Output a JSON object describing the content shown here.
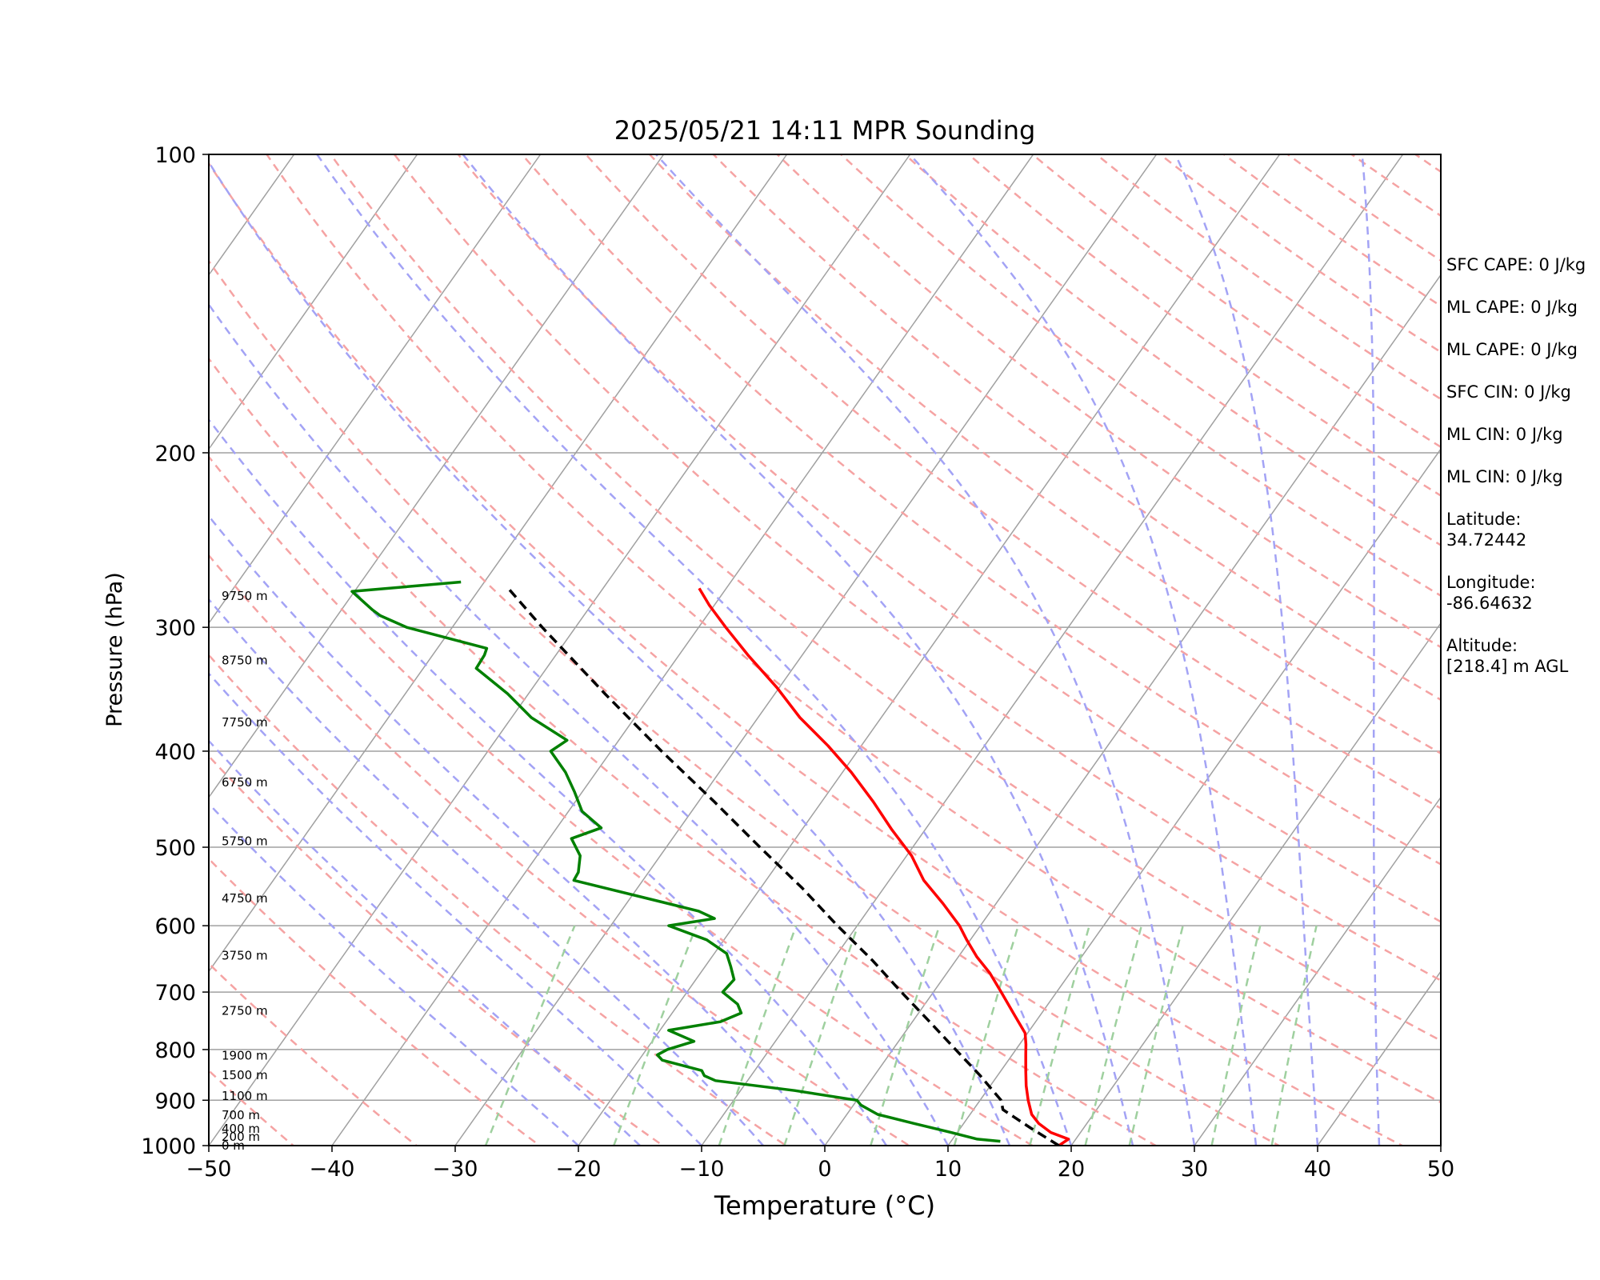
{
  "title": "2025/05/21 14:11 MPR Sounding",
  "side_info": [
    "SFC CAPE: 0 J/kg",
    "ML CAPE: 0 J/kg",
    "ML CAPE: 0 J/kg",
    "SFC CIN: 0 J/kg",
    "ML CIN: 0 J/kg",
    "ML CIN: 0 J/kg",
    "Latitude:\n34.72442",
    "Longitude:\n-86.64632",
    "Altitude:\n[218.4] m AGL"
  ],
  "chart_data": {
    "type": "line",
    "subtype": "skew-T log-P diagram",
    "title": "2025/05/21 14:11 MPR Sounding",
    "xlabel": "Temperature (°C)",
    "ylabel": "Pressure (hPa)",
    "xlim": [
      -50,
      50
    ],
    "ylim": [
      1000,
      100
    ],
    "yscale": "log",
    "x_ticks": [
      "−50",
      "−40",
      "−30",
      "−20",
      "−10",
      "0",
      "10",
      "20",
      "30",
      "40",
      "50"
    ],
    "y_ticks": [
      "100",
      "200",
      "300",
      "400",
      "500",
      "600",
      "700",
      "800",
      "900",
      "1000"
    ],
    "grid": "horizontal isobars at labeled pressures; skewed isotherms",
    "background_lines": {
      "isotherms": {
        "color": "#a0a0a0",
        "values_c": [
          -150,
          -140,
          -130,
          -120,
          -110,
          -100,
          -90,
          -80,
          -70,
          -60,
          -50,
          -40,
          -30,
          -20,
          -10,
          0,
          10,
          20,
          30,
          40,
          50
        ]
      },
      "dry_adiabats": {
        "color": "#f5a3a3",
        "style": "dashed"
      },
      "moist_adiabats": {
        "color": "#a3a3f5",
        "style": "dashed"
      },
      "mixing_ratio_lines": {
        "color": "#9fd09f",
        "style": "dashed",
        "top_hpa": 600
      }
    },
    "height_labels": [
      {
        "text": "0 m",
        "p": 1000
      },
      {
        "text": "200 m",
        "p": 980
      },
      {
        "text": "400 m",
        "p": 962
      },
      {
        "text": "700 m",
        "p": 932
      },
      {
        "text": "1100 m",
        "p": 891
      },
      {
        "text": "1500 m",
        "p": 849
      },
      {
        "text": "1900 m",
        "p": 811
      },
      {
        "text": "2750 m",
        "p": 731
      },
      {
        "text": "3750 m",
        "p": 643
      },
      {
        "text": "4750 m",
        "p": 563
      },
      {
        "text": "5750 m",
        "p": 493
      },
      {
        "text": "6750 m",
        "p": 430
      },
      {
        "text": "7750 m",
        "p": 374
      },
      {
        "text": "8750 m",
        "p": 324
      },
      {
        "text": "9750 m",
        "p": 279
      }
    ],
    "series": [
      {
        "name": "",
        "kind": "temperature",
        "color": "#ff0000",
        "points": [
          [
            1000,
            19.0
          ],
          [
            985,
            19.4
          ],
          [
            970,
            17.6
          ],
          [
            950,
            16.1
          ],
          [
            930,
            15.0
          ],
          [
            900,
            13.9
          ],
          [
            870,
            12.9
          ],
          [
            840,
            12.0
          ],
          [
            810,
            11.1
          ],
          [
            790,
            10.5
          ],
          [
            770,
            9.8
          ],
          [
            740,
            8.0
          ],
          [
            700,
            5.5
          ],
          [
            670,
            3.5
          ],
          [
            645,
            1.5
          ],
          [
            620,
            -0.3
          ],
          [
            600,
            -1.7
          ],
          [
            570,
            -4.3
          ],
          [
            540,
            -7.2
          ],
          [
            510,
            -9.6
          ],
          [
            480,
            -12.7
          ],
          [
            450,
            -15.8
          ],
          [
            420,
            -19.3
          ],
          [
            395,
            -22.7
          ],
          [
            370,
            -26.6
          ],
          [
            345,
            -30.2
          ],
          [
            320,
            -34.4
          ],
          [
            300,
            -37.8
          ],
          [
            285,
            -40.4
          ],
          [
            274,
            -42.2
          ]
        ]
      },
      {
        "name": "",
        "kind": "parcel path",
        "color": "#000000",
        "style": "dashed",
        "points": [
          [
            1000,
            19.0
          ],
          [
            960,
            15.7
          ],
          [
            920,
            12.4
          ],
          [
            900,
            11.7
          ],
          [
            850,
            8.6
          ],
          [
            800,
            5.1
          ],
          [
            750,
            1.4
          ],
          [
            700,
            -2.6
          ],
          [
            650,
            -6.8
          ],
          [
            600,
            -11.6
          ],
          [
            550,
            -16.6
          ],
          [
            500,
            -22.4
          ],
          [
            450,
            -28.7
          ],
          [
            400,
            -35.9
          ],
          [
            350,
            -43.8
          ],
          [
            300,
            -52.7
          ],
          [
            274,
            -57.7
          ]
        ]
      },
      {
        "name": "",
        "kind": "dewpoint",
        "color": "#008000",
        "points": [
          [
            990,
            14.0
          ],
          [
            985,
            12.0
          ],
          [
            970,
            9.5
          ],
          [
            950,
            6.0
          ],
          [
            930,
            2.5
          ],
          [
            910,
            0.6
          ],
          [
            900,
            0.0
          ],
          [
            880,
            -5.6
          ],
          [
            860,
            -12.6
          ],
          [
            850,
            -13.8
          ],
          [
            840,
            -14.3
          ],
          [
            820,
            -18.1
          ],
          [
            810,
            -18.8
          ],
          [
            800,
            -18.3
          ],
          [
            785,
            -16.6
          ],
          [
            765,
            -19.3
          ],
          [
            750,
            -15.6
          ],
          [
            735,
            -14.4
          ],
          [
            720,
            -15.2
          ],
          [
            700,
            -17.1
          ],
          [
            680,
            -16.9
          ],
          [
            660,
            -17.9
          ],
          [
            640,
            -19.0
          ],
          [
            620,
            -21.4
          ],
          [
            600,
            -25.3
          ],
          [
            590,
            -22.0
          ],
          [
            580,
            -23.7
          ],
          [
            570,
            -26.6
          ],
          [
            540,
            -35.6
          ],
          [
            530,
            -35.7
          ],
          [
            510,
            -36.5
          ],
          [
            490,
            -38.2
          ],
          [
            478,
            -36.4
          ],
          [
            460,
            -38.9
          ],
          [
            440,
            -40.6
          ],
          [
            420,
            -42.5
          ],
          [
            400,
            -44.9
          ],
          [
            390,
            -44.2
          ],
          [
            370,
            -48.4
          ],
          [
            350,
            -51.7
          ],
          [
            330,
            -55.7
          ],
          [
            320,
            -55.8
          ],
          [
            315,
            -56.0
          ],
          [
            300,
            -63.7
          ],
          [
            292,
            -66.5
          ],
          [
            288,
            -67.5
          ],
          [
            276,
            -70.2
          ],
          [
            270,
            -61.9
          ]
        ]
      }
    ]
  }
}
